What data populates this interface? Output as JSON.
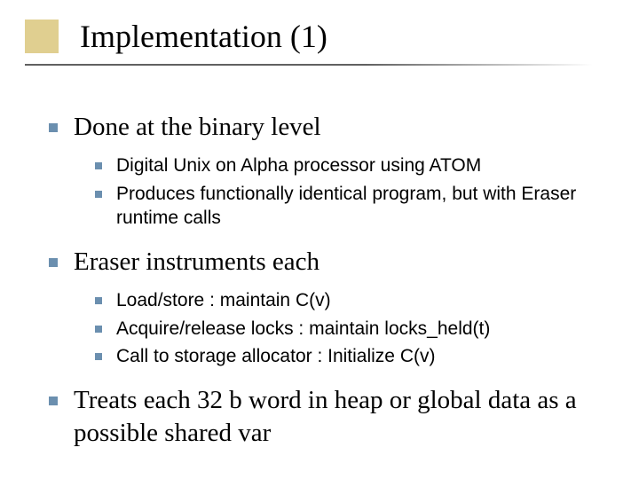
{
  "title": "Implementation (1)",
  "colors": {
    "accent_box": "#e0cf90",
    "bullet": "#6b8faf",
    "background": "#ffffff",
    "text": "#000000",
    "underline": "#606060"
  },
  "typography": {
    "title_font": "Times New Roman",
    "title_size_pt": 36,
    "level1_font": "Times New Roman",
    "level1_size_pt": 29,
    "level2_font": "Arial",
    "level2_size_pt": 21
  },
  "bullets": [
    {
      "text": "Done at the binary level",
      "children": [
        "Digital Unix on Alpha processor using ATOM",
        "Produces functionally identical program, but with Eraser runtime calls"
      ]
    },
    {
      "text": "Eraser instruments each",
      "children": [
        "Load/store : maintain C(v)",
        "Acquire/release locks : maintain locks_held(t)",
        "Call to storage allocator : Initialize C(v)"
      ]
    },
    {
      "text": "Treats each 32 b word in heap or global data as a possible shared var",
      "children": []
    }
  ]
}
